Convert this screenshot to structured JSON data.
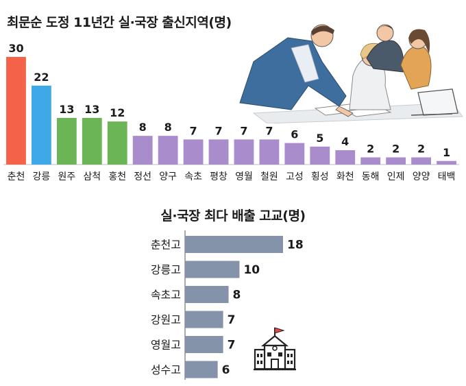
{
  "chart_data": [
    {
      "type": "bar",
      "title": "최문순 도정 11년간 실·국장 출신지역(명)",
      "categories": [
        "춘천",
        "강릉",
        "원주",
        "삼척",
        "홍천",
        "정선",
        "양구",
        "속초",
        "평창",
        "영월",
        "철원",
        "고성",
        "횡성",
        "화천",
        "동해",
        "인제",
        "양양",
        "태백"
      ],
      "values": [
        30,
        22,
        13,
        13,
        12,
        8,
        8,
        7,
        7,
        7,
        7,
        6,
        5,
        4,
        2,
        2,
        2,
        1
      ],
      "bar_colors": [
        "#f4624a",
        "#3ea9e6",
        "#6bb556",
        "#6bb556",
        "#6bb556",
        "#a88ccc",
        "#a88ccc",
        "#a88ccc",
        "#a88ccc",
        "#a88ccc",
        "#a88ccc",
        "#a88ccc",
        "#a88ccc",
        "#a88ccc",
        "#a88ccc",
        "#a88ccc",
        "#a88ccc",
        "#a88ccc"
      ],
      "ylim": [
        0,
        30
      ]
    },
    {
      "type": "bar",
      "orientation": "horizontal",
      "title": "실·국장 최다 배출 고교(명)",
      "categories": [
        "춘천고",
        "강릉고",
        "속초고",
        "강원고",
        "영월고",
        "성수고"
      ],
      "values": [
        18,
        10,
        8,
        7,
        7,
        6
      ],
      "bar_color": "#8593aa",
      "xlim": [
        0,
        18
      ]
    }
  ],
  "icons": [
    "business-meeting-illustration",
    "school-building-icon"
  ]
}
